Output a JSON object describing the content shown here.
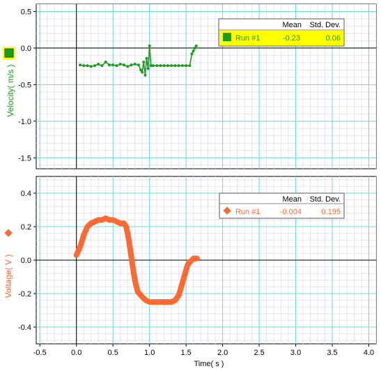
{
  "colors": {
    "velocity": "#1a9e1a",
    "voltage": "#ff6a33",
    "grid_major": "#6cd9d9",
    "grid_minor": "#e4e4f2",
    "highlight": "#ffff00"
  },
  "x_axis": {
    "label": "Time( s )",
    "ticks": [
      "-0.5",
      "0.0",
      "0.5",
      "1.0",
      "1.5",
      "2.0",
      "2.5",
      "3.0",
      "3.5",
      "4.0"
    ]
  },
  "velocity_legend": {
    "headers": [
      "Mean",
      "Std. Dev."
    ],
    "run": "Run #1",
    "mean": "-0.23",
    "std": "0.06"
  },
  "voltage_legend": {
    "headers": [
      "Mean",
      "Std. Dev."
    ],
    "run": "Run #1",
    "mean": "-0.004",
    "std": "0.195"
  },
  "chart_data": [
    {
      "type": "line",
      "ylabel": "Velocity( m/s )",
      "xlabel": "Time( s )",
      "xlim": [
        -0.55,
        4.1
      ],
      "ylim": [
        -1.65,
        0.6
      ],
      "yticks": [
        "0.5",
        "0.0",
        "-0.5",
        "-1.0",
        "-1.5"
      ],
      "grid": true,
      "series": [
        {
          "name": "Run #1",
          "marker": "circle",
          "x": [
            0.05,
            0.1,
            0.15,
            0.2,
            0.25,
            0.3,
            0.35,
            0.4,
            0.45,
            0.5,
            0.55,
            0.6,
            0.65,
            0.7,
            0.75,
            0.8,
            0.85,
            0.88,
            0.9,
            0.92,
            0.94,
            0.96,
            0.98,
            1.0,
            1.02,
            1.05,
            1.1,
            1.15,
            1.2,
            1.25,
            1.3,
            1.35,
            1.4,
            1.45,
            1.5,
            1.55,
            1.58,
            1.6,
            1.62,
            1.64
          ],
          "y": [
            -0.23,
            -0.24,
            -0.24,
            -0.25,
            -0.24,
            -0.22,
            -0.24,
            -0.19,
            -0.23,
            -0.23,
            -0.24,
            -0.22,
            -0.23,
            -0.25,
            -0.23,
            -0.22,
            -0.23,
            -0.3,
            -0.33,
            -0.19,
            -0.37,
            -0.14,
            -0.28,
            0.03,
            -0.24,
            -0.24,
            -0.24,
            -0.24,
            -0.24,
            -0.24,
            -0.24,
            -0.24,
            -0.24,
            -0.24,
            -0.24,
            -0.24,
            -0.08,
            -0.04,
            0.0,
            0.03
          ]
        }
      ]
    },
    {
      "type": "scatter",
      "ylabel": "Voltage( V )",
      "xlabel": "Time( s )",
      "xlim": [
        -0.55,
        4.1
      ],
      "ylim": [
        -0.5,
        0.5
      ],
      "yticks": [
        "0.4",
        "0.2",
        "0.0",
        "-0.2",
        "-0.4"
      ],
      "grid": true,
      "series": [
        {
          "name": "Run #1",
          "marker": "diamond",
          "x": [
            0.0,
            0.02,
            0.05,
            0.08,
            0.1,
            0.13,
            0.15,
            0.2,
            0.25,
            0.3,
            0.35,
            0.4,
            0.45,
            0.5,
            0.55,
            0.6,
            0.65,
            0.68,
            0.7,
            0.72,
            0.74,
            0.76,
            0.78,
            0.8,
            0.82,
            0.84,
            0.86,
            0.88,
            0.9,
            0.95,
            1.0,
            1.05,
            1.1,
            1.15,
            1.2,
            1.25,
            1.3,
            1.35,
            1.4,
            1.42,
            1.44,
            1.46,
            1.48,
            1.5,
            1.52,
            1.55,
            1.58,
            1.6,
            1.63,
            1.65
          ],
          "y": [
            0.03,
            0.05,
            0.08,
            0.12,
            0.15,
            0.18,
            0.2,
            0.22,
            0.23,
            0.24,
            0.24,
            0.25,
            0.24,
            0.24,
            0.23,
            0.22,
            0.22,
            0.2,
            0.16,
            0.11,
            0.05,
            -0.01,
            -0.07,
            -0.12,
            -0.16,
            -0.19,
            -0.2,
            -0.21,
            -0.22,
            -0.24,
            -0.25,
            -0.25,
            -0.25,
            -0.25,
            -0.25,
            -0.25,
            -0.25,
            -0.24,
            -0.21,
            -0.18,
            -0.15,
            -0.12,
            -0.09,
            -0.06,
            -0.03,
            -0.01,
            0.0,
            0.01,
            0.01,
            0.01
          ]
        }
      ]
    }
  ]
}
